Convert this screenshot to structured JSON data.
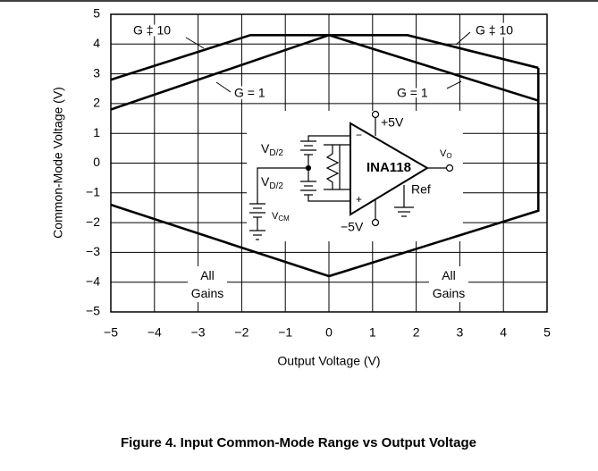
{
  "chart_data": {
    "type": "line",
    "caption": "Figure 4. Input Common-Mode Range vs Output Voltage",
    "xlabel": "Output Voltage (V)",
    "ylabel": "Common-Mode Voltage (V)",
    "xlim": [
      -5,
      5
    ],
    "ylim": [
      -5,
      5
    ],
    "xticks": [
      {
        "value": -5,
        "label": "−5"
      },
      {
        "value": -4,
        "label": "−4"
      },
      {
        "value": -3,
        "label": "−3"
      },
      {
        "value": -2,
        "label": "−2"
      },
      {
        "value": -1,
        "label": "−1"
      },
      0,
      1,
      2,
      3,
      4,
      5
    ],
    "yticks": [
      {
        "value": -5,
        "label": "−5"
      },
      {
        "value": -4,
        "label": "−4"
      },
      {
        "value": -3,
        "label": "−3"
      },
      {
        "value": -2,
        "label": "−2"
      },
      {
        "value": -1,
        "label": "−1"
      },
      0,
      1,
      2,
      3,
      4,
      5
    ],
    "grid": true,
    "series": [
      {
        "name": "G ‡ 10",
        "color": "#000000",
        "x": [
          -5,
          -1.8,
          1.8,
          4.8
        ],
        "values": [
          2.8,
          4.3,
          4.3,
          3.2
        ]
      },
      {
        "name": "G = 1",
        "color": "#000000",
        "x": [
          -5,
          0,
          4.8
        ],
        "values": [
          1.8,
          4.3,
          2.1
        ]
      },
      {
        "name": "All Gains",
        "color": "#000000",
        "x": [
          4.8,
          4.8,
          0,
          -5
        ],
        "values": [
          3.2,
          -1.6,
          -3.8,
          -1.4
        ]
      }
    ],
    "inset": {
      "amplifier": "INA118",
      "positive_supply": "+5V",
      "negative_supply": "−5V",
      "reference": "Ref",
      "output": {
        "main": "V",
        "sub": "O"
      },
      "differential_source": {
        "main": "V",
        "sub": "D/2"
      },
      "common_mode_source": {
        "main": "V",
        "sub": "CM"
      }
    }
  }
}
